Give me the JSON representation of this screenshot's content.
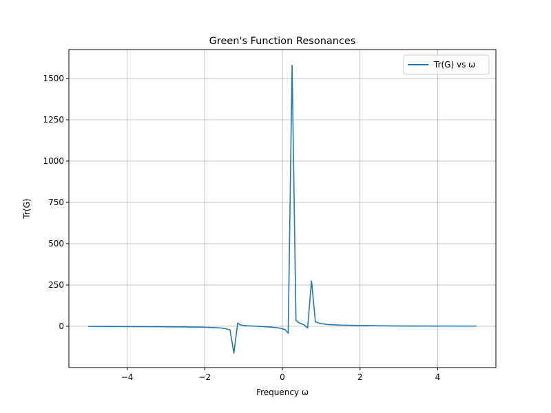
{
  "chart_data": {
    "type": "line",
    "title": "Green's Function Resonances",
    "xlabel": "Frequency ω",
    "ylabel": "Tr(G)",
    "xlim": [
      -5.5,
      5.5
    ],
    "ylim": [
      -250,
      1675
    ],
    "xticks": [
      -4,
      -2,
      0,
      2,
      4
    ],
    "xtick_labels": [
      "−4",
      "−2",
      "0",
      "2",
      "4"
    ],
    "yticks": [
      0,
      250,
      500,
      750,
      1000,
      1250,
      1500
    ],
    "ytick_labels": [
      "0",
      "250",
      "500",
      "750",
      "1000",
      "1250",
      "1500"
    ],
    "grid": true,
    "legend_position": "top-right",
    "series": [
      {
        "name": "Tr(G) vs ω",
        "color": "#1f77b4",
        "x": [
          -5.0,
          -4.5,
          -4.0,
          -3.5,
          -3.0,
          -2.5,
          -2.0,
          -1.75,
          -1.6,
          -1.5,
          -1.35,
          -1.25,
          -1.15,
          -1.1,
          -1.0,
          -0.9,
          -0.75,
          -0.5,
          -0.25,
          -0.1,
          0.0,
          0.07,
          0.15,
          0.25,
          0.35,
          0.45,
          0.55,
          0.65,
          0.75,
          0.85,
          0.95,
          1.05,
          1.2,
          1.5,
          2.0,
          2.5,
          3.0,
          4.0,
          5.0
        ],
        "y": [
          -1,
          -1.5,
          -2,
          -2.5,
          -3,
          -4,
          -6,
          -8,
          -10,
          -13,
          -22,
          -162,
          20,
          10,
          5,
          3,
          1,
          -2,
          -6,
          -10,
          -15,
          -20,
          -42,
          1580,
          35,
          18,
          10,
          -10,
          275,
          28,
          18,
          14,
          10,
          7,
          5,
          3,
          2,
          1.5,
          1
        ]
      }
    ]
  }
}
